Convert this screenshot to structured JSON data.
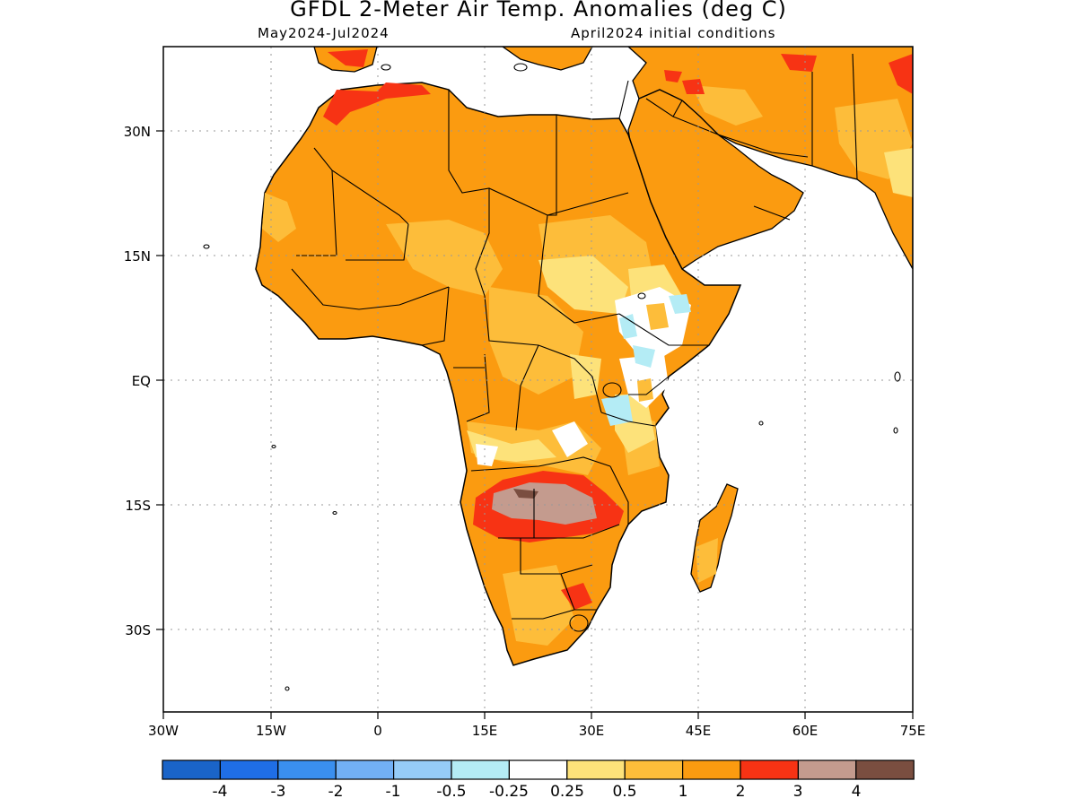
{
  "title": "GFDL 2-Meter Air Temp. Anomalies (deg C)",
  "subtitle_left": "May2024-Jul2024",
  "subtitle_right": "April2024 initial conditions",
  "axes": {
    "lon_ticks": [
      "30W",
      "15W",
      "0",
      "15E",
      "30E",
      "45E",
      "60E",
      "75E"
    ],
    "lat_ticks": [
      "30N",
      "15N",
      "EQ",
      "15S",
      "30S"
    ]
  },
  "colorbar": {
    "colors": [
      "#1a64c8",
      "#1f6ee6",
      "#3a8fef",
      "#72b0f5",
      "#96ccf7",
      "#b4ecf5",
      "#ffffff",
      "#fde27a",
      "#fdbd3a",
      "#fb9b10",
      "#f73314",
      "#c49b8e",
      "#7a4e40"
    ],
    "labels": [
      "-4",
      "-3",
      "-2",
      "-1",
      "-0.5",
      "-0.25",
      "0.25",
      "0.5",
      "1",
      "2",
      "3",
      "4"
    ]
  }
}
